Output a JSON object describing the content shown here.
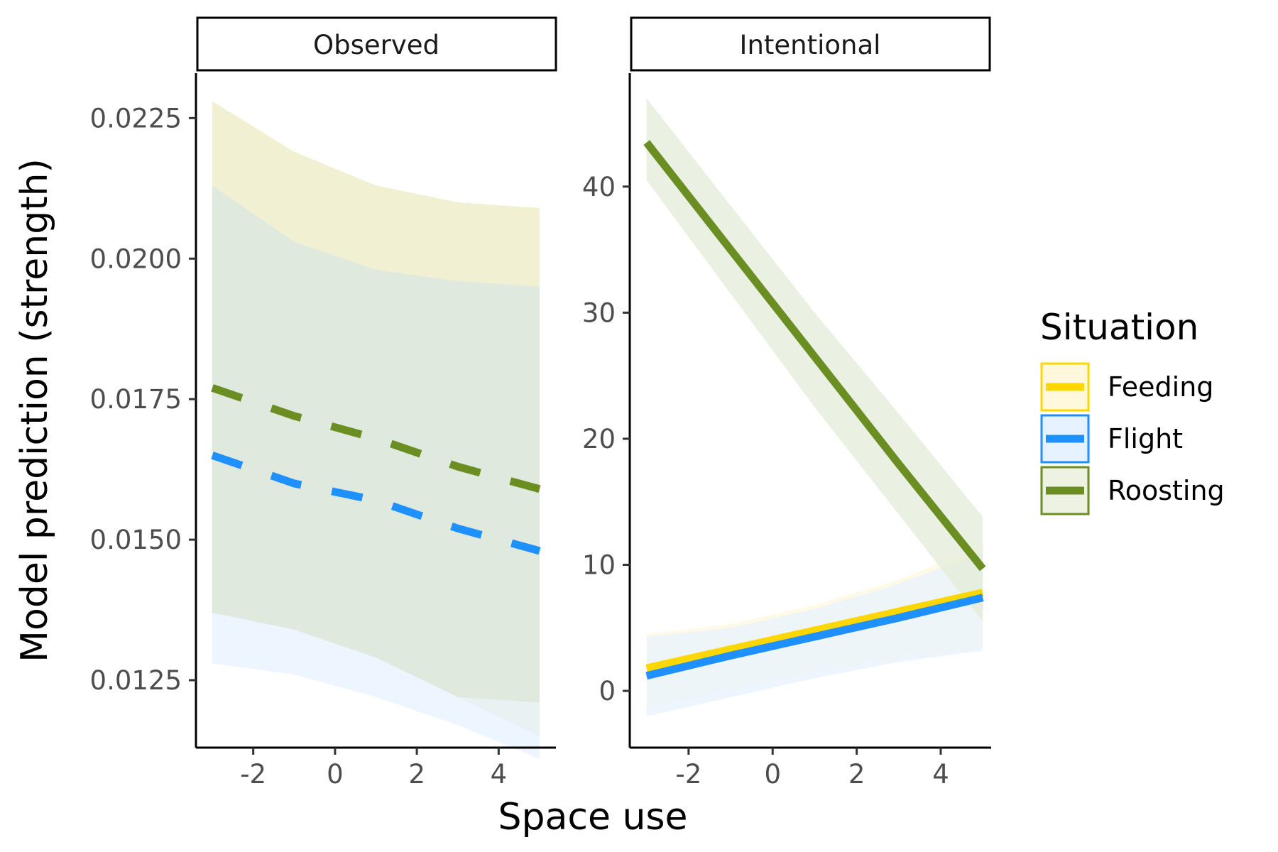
{
  "chart_data": {
    "type": "line",
    "xlabel": "Space use",
    "ylabel": "Model prediction (strength)",
    "legend": {
      "title": "Situation",
      "placement": "right",
      "entries": [
        {
          "name": "Feeding",
          "color": "#FFD700",
          "fill": "#FFF8DC"
        },
        {
          "name": "Flight",
          "color": "#1E90FF",
          "fill": "#E6F2FF"
        },
        {
          "name": "Roosting",
          "color": "#6B8E23",
          "fill": "#EDF2E3"
        }
      ]
    },
    "panels": [
      {
        "strip": "Observed",
        "linetype": "dashed",
        "xlim": [
          -3.4,
          5.4
        ],
        "ylim": [
          0.0113,
          0.0233
        ],
        "xticks": [
          -2,
          0,
          2,
          4
        ],
        "xtick_labels": [
          "-2",
          "0",
          "2",
          "4"
        ],
        "yticks": [
          0.0125,
          0.015,
          0.0175,
          0.02,
          0.0225
        ],
        "ytick_labels": [
          "0.0125",
          "0.0150",
          "0.0175",
          "0.0200",
          "0.0225"
        ],
        "series": [
          {
            "name": "Feeding",
            "color": "#FFD700",
            "fill": "#EBE9C0",
            "x": [
              -3,
              -1,
              1,
              3,
              5
            ],
            "y": [
              null,
              null,
              null,
              null,
              null
            ],
            "lower": [
              0.0137,
              0.0134,
              0.0129,
              0.0122,
              0.0115
            ],
            "upper": [
              0.0228,
              0.0219,
              0.0213,
              0.021,
              0.0209
            ],
            "visible_line": false
          },
          {
            "name": "Flight",
            "color": "#1E90FF",
            "fill": "#E6F2FF",
            "x": [
              -3,
              -1,
              1,
              3,
              5
            ],
            "y": [
              0.0165,
              0.016,
              0.0157,
              0.0152,
              0.0148
            ],
            "lower": [
              0.0128,
              0.0126,
              0.0122,
              0.0117,
              0.0111
            ],
            "upper": [
              0.0213,
              0.0203,
              0.0198,
              0.0196,
              0.0195
            ]
          },
          {
            "name": "Roosting",
            "color": "#6B8E23",
            "fill": "#DCE5D4",
            "x": [
              -3,
              -1,
              1,
              3,
              5
            ],
            "y": [
              0.0177,
              0.0172,
              0.0168,
              0.0163,
              0.0159
            ],
            "lower": [
              0.0137,
              0.0134,
              0.0129,
              0.0122,
              0.0121
            ],
            "upper": [
              0.0213,
              0.0203,
              0.0198,
              0.0196,
              0.0195
            ]
          }
        ]
      },
      {
        "strip": "Intentional",
        "linetype": "solid",
        "xlim": [
          -3.4,
          5.2
        ],
        "ylim": [
          -4.5,
          49
        ],
        "xticks": [
          -2,
          0,
          2,
          4
        ],
        "xtick_labels": [
          "-2",
          "0",
          "2",
          "4"
        ],
        "yticks": [
          0,
          10,
          20,
          30,
          40
        ],
        "ytick_labels": [
          "0",
          "10",
          "20",
          "30",
          "40"
        ],
        "series": [
          {
            "name": "Feeding",
            "color": "#FFD700",
            "fill": "#FFF8DC",
            "x": [
              -3,
              -1,
              1,
              3,
              5
            ],
            "y": [
              1.8,
              3.3,
              4.8,
              6.3,
              7.8
            ],
            "lower": [
              -1.5,
              0.0,
              1.5,
              2.5,
              3.3
            ],
            "upper": [
              4.5,
              5.3,
              6.8,
              8.8,
              11.5
            ]
          },
          {
            "name": "Flight",
            "color": "#1E90FF",
            "fill": "#E6F2FF",
            "x": [
              -3,
              -1,
              1,
              3,
              5
            ],
            "y": [
              1.2,
              2.8,
              4.3,
              5.8,
              7.4
            ],
            "lower": [
              -2.0,
              -0.5,
              1.0,
              2.3,
              3.2
            ],
            "upper": [
              4.3,
              5.0,
              6.5,
              8.5,
              11.0
            ]
          },
          {
            "name": "Roosting",
            "color": "#6B8E23",
            "fill": "#E3EBD6",
            "x": [
              -3,
              -1,
              1,
              3,
              5
            ],
            "y": [
              43.5,
              35.0,
              26.5,
              18.0,
              9.7
            ],
            "lower": [
              40.5,
              31.5,
              22.5,
              14.0,
              5.5
            ],
            "upper": [
              47.0,
              38.5,
              30.0,
              22.0,
              13.8
            ]
          }
        ]
      }
    ]
  }
}
